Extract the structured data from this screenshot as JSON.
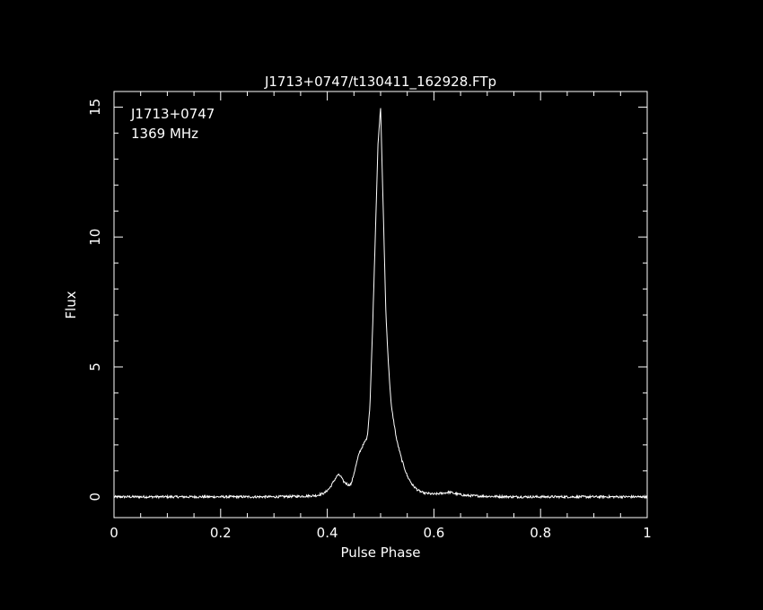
{
  "chart_data": {
    "type": "line",
    "title": "J1713+0747/t130411_162928.FTp",
    "xlabel": "Pulse Phase",
    "ylabel": "Flux",
    "xlim": [
      0,
      1
    ],
    "ylim": [
      -0.8,
      15.6
    ],
    "xticks": [
      0,
      0.2,
      0.4,
      0.6,
      0.8,
      1
    ],
    "xtick_labels": [
      "0",
      "0.2",
      "0.4",
      "0.6",
      "0.8",
      "1"
    ],
    "yticks": [
      0,
      5,
      10,
      15
    ],
    "ytick_labels": [
      "0",
      "5",
      "10",
      "15"
    ],
    "grid": false,
    "annotations": [
      "J1713+0747",
      "1369 MHz"
    ],
    "series": [
      {
        "x": [
          0,
          0.05,
          0.1,
          0.15,
          0.2,
          0.25,
          0.3,
          0.35,
          0.38,
          0.395,
          0.405,
          0.415,
          0.42,
          0.425,
          0.43,
          0.44,
          0.445,
          0.45,
          0.455,
          0.46,
          0.465,
          0.47,
          0.475,
          0.48,
          0.485,
          0.49,
          0.495,
          0.5,
          0.505,
          0.51,
          0.515,
          0.52,
          0.53,
          0.54,
          0.55,
          0.56,
          0.57,
          0.58,
          0.6,
          0.62,
          0.63,
          0.64,
          0.66,
          0.7,
          0.75,
          0.8,
          0.85,
          0.9,
          0.95,
          1.0
        ],
        "y": [
          0.0,
          0.0,
          0.0,
          0.0,
          0.0,
          0.0,
          0.0,
          0.02,
          0.05,
          0.15,
          0.35,
          0.7,
          0.85,
          0.8,
          0.6,
          0.45,
          0.5,
          0.9,
          1.3,
          1.7,
          1.9,
          2.1,
          2.3,
          3.5,
          6.5,
          10.0,
          13.5,
          15.0,
          11.0,
          7.0,
          5.0,
          3.5,
          2.2,
          1.4,
          0.8,
          0.45,
          0.25,
          0.15,
          0.1,
          0.15,
          0.18,
          0.12,
          0.05,
          0.02,
          0.0,
          0.0,
          0.0,
          0.0,
          0.0,
          0.0
        ]
      }
    ]
  }
}
